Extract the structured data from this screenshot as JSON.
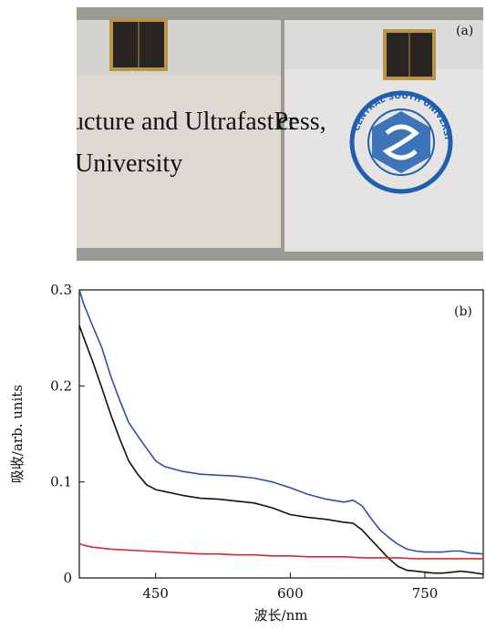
{
  "photo": {
    "label": "(a)",
    "text_line1": "ucture and UltrafastPr",
    "text_line1_cont": "cess,",
    "text_line2": "University",
    "seal_text": "CENTRAL SOUTH UNIVERSITY",
    "colors": {
      "background": "#9a9a92",
      "slide_left": "#ddd8d2",
      "slide_right": "#e6e4e2",
      "electrode": "#2a2420",
      "seal": "#1f5fb0"
    }
  },
  "chart_data": {
    "type": "line",
    "panel_label": "(b)",
    "xlabel": "波长/nm",
    "ylabel": "吸收/arb. units",
    "xlim": [
      365,
      815
    ],
    "ylim": [
      0,
      0.3
    ],
    "xticks": [
      450,
      600,
      750
    ],
    "yticks": [
      0,
      0.1,
      0.2,
      0.3
    ],
    "ytick_labels": [
      "0",
      "0.1",
      "0.2",
      "0.3"
    ],
    "grid": false,
    "series": [
      {
        "color": "#2f4fa6",
        "x": [
          365,
          370,
          380,
          390,
          400,
          410,
          420,
          430,
          440,
          450,
          460,
          480,
          500,
          520,
          540,
          560,
          580,
          600,
          620,
          640,
          660,
          670,
          680,
          690,
          700,
          710,
          720,
          730,
          740,
          750,
          760,
          770,
          780,
          790,
          800,
          815
        ],
        "y": [
          0.3,
          0.285,
          0.262,
          0.24,
          0.21,
          0.185,
          0.162,
          0.148,
          0.135,
          0.122,
          0.116,
          0.111,
          0.108,
          0.107,
          0.106,
          0.104,
          0.1,
          0.094,
          0.087,
          0.082,
          0.079,
          0.081,
          0.075,
          0.062,
          0.05,
          0.042,
          0.035,
          0.03,
          0.028,
          0.027,
          0.027,
          0.027,
          0.028,
          0.028,
          0.026,
          0.025
        ]
      },
      {
        "color": "#111111",
        "x": [
          365,
          370,
          380,
          390,
          400,
          410,
          420,
          430,
          440,
          450,
          460,
          480,
          500,
          520,
          540,
          560,
          580,
          600,
          620,
          640,
          660,
          670,
          680,
          690,
          700,
          710,
          720,
          730,
          740,
          750,
          760,
          770,
          780,
          790,
          800,
          815
        ],
        "y": [
          0.263,
          0.25,
          0.225,
          0.198,
          0.17,
          0.145,
          0.122,
          0.108,
          0.097,
          0.092,
          0.09,
          0.086,
          0.083,
          0.082,
          0.08,
          0.078,
          0.073,
          0.066,
          0.063,
          0.061,
          0.058,
          0.057,
          0.05,
          0.04,
          0.03,
          0.02,
          0.012,
          0.008,
          0.007,
          0.006,
          0.005,
          0.005,
          0.006,
          0.007,
          0.006,
          0.004
        ]
      },
      {
        "color": "#d62a2a",
        "x": [
          365,
          370,
          380,
          390,
          400,
          420,
          440,
          460,
          480,
          500,
          520,
          540,
          560,
          580,
          600,
          620,
          640,
          660,
          680,
          700,
          720,
          740,
          760,
          780,
          800,
          815
        ],
        "y": [
          0.036,
          0.034,
          0.032,
          0.031,
          0.03,
          0.029,
          0.028,
          0.027,
          0.026,
          0.025,
          0.025,
          0.024,
          0.024,
          0.023,
          0.023,
          0.022,
          0.022,
          0.022,
          0.021,
          0.021,
          0.021,
          0.02,
          0.02,
          0.02,
          0.02,
          0.02
        ]
      }
    ]
  }
}
